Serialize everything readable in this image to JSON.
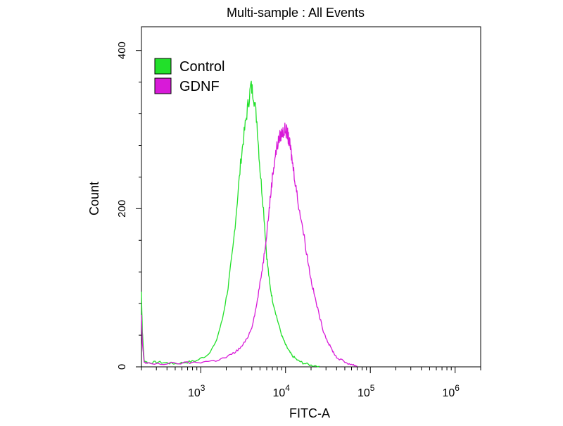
{
  "chart_data": {
    "type": "line",
    "title": "Multi-sample : All Events",
    "xlabel": "FITC-A",
    "ylabel": "Count",
    "x_scale": "log",
    "xlim": [
      200,
      2000000
    ],
    "ylim": [
      0,
      430
    ],
    "x_ticks": [
      {
        "value": 1000,
        "base": "10",
        "exp": "3"
      },
      {
        "value": 10000,
        "base": "10",
        "exp": "4"
      },
      {
        "value": 100000,
        "base": "10",
        "exp": "5"
      },
      {
        "value": 1000000,
        "base": "10",
        "exp": "6"
      }
    ],
    "y_ticks": [
      {
        "value": 0,
        "label": "0"
      },
      {
        "value": 200,
        "label": "200"
      },
      {
        "value": 400,
        "label": "400"
      }
    ],
    "grid": false,
    "legend": "top-left",
    "series": [
      {
        "name": "Control",
        "color": "#22e02a",
        "x": [
          200,
          205,
          215,
          240,
          300,
          400,
          500,
          700,
          900,
          1200,
          1500,
          1800,
          2100,
          2400,
          2700,
          3000,
          3300,
          3600,
          3900,
          4200,
          4600,
          5000,
          5500,
          6000,
          6500,
          7000,
          8000,
          9000,
          10000,
          11000,
          12000,
          14000,
          16000,
          20000,
          25000
        ],
        "values": [
          95,
          45,
          8,
          5,
          6,
          5,
          4,
          6,
          8,
          15,
          30,
          60,
          100,
          150,
          210,
          265,
          300,
          330,
          355,
          345,
          310,
          250,
          200,
          140,
          105,
          85,
          60,
          40,
          28,
          20,
          14,
          8,
          5,
          2,
          1
        ]
      },
      {
        "name": "GDNF",
        "color": "#d81ad8",
        "x": [
          200,
          205,
          215,
          240,
          400,
          700,
          1000,
          1500,
          2000,
          2500,
          3000,
          3500,
          4000,
          4500,
          5000,
          5500,
          6000,
          6500,
          7000,
          7500,
          8000,
          8500,
          9000,
          9500,
          10000,
          10500,
          11000,
          11500,
          12000,
          13000,
          14000,
          16000,
          18000,
          20000,
          22000,
          25000,
          28000,
          32000,
          36000,
          40000,
          50000,
          60000,
          70000
        ],
        "values": [
          65,
          30,
          6,
          4,
          4,
          5,
          6,
          8,
          12,
          18,
          25,
          35,
          50,
          75,
          105,
          135,
          170,
          205,
          240,
          265,
          280,
          290,
          295,
          298,
          300,
          295,
          285,
          275,
          260,
          235,
          210,
          175,
          140,
          110,
          90,
          65,
          45,
          30,
          20,
          12,
          6,
          3,
          1
        ]
      }
    ]
  }
}
